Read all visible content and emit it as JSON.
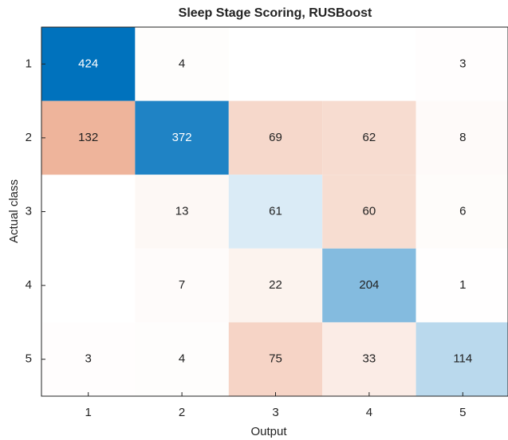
{
  "chart_data": {
    "type": "heatmap",
    "title": "Sleep Stage Scoring, RUSBoost",
    "xlabel": "Output",
    "ylabel": "Actual class",
    "x_categories": [
      "1",
      "2",
      "3",
      "4",
      "5"
    ],
    "y_categories": [
      "1",
      "2",
      "3",
      "4",
      "5"
    ],
    "values": [
      [
        424,
        4,
        null,
        null,
        3
      ],
      [
        132,
        372,
        69,
        62,
        8
      ],
      [
        null,
        13,
        61,
        60,
        6
      ],
      [
        null,
        7,
        22,
        204,
        1
      ],
      [
        3,
        4,
        75,
        33,
        114
      ]
    ],
    "diagonal_color": "#0072bd",
    "off_diagonal_color": "#d95319"
  }
}
